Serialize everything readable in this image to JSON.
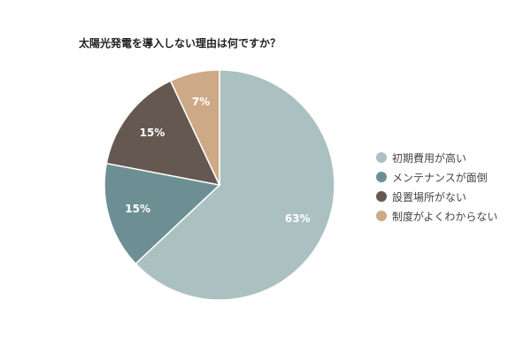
{
  "chart_data": {
    "type": "pie",
    "title": "太陽光発電を導入しない理由は何ですか？",
    "categories": [
      "初期費用が高い",
      "メンテナンスが面倒",
      "設置場所がない",
      "制度がよくわからない"
    ],
    "values": [
      63,
      15,
      15,
      7
    ],
    "data_labels": [
      "63%",
      "15%",
      "15%",
      "7%"
    ],
    "colors": [
      "#abc1c1",
      "#6d8f93",
      "#645850",
      "#cea987"
    ],
    "label_colors": [
      "#ffffff",
      "#ffffff",
      "#ffffff",
      "#ffffff"
    ],
    "start_angle": "12 o'clock",
    "direction": "clockwise",
    "legend_position": "right"
  }
}
